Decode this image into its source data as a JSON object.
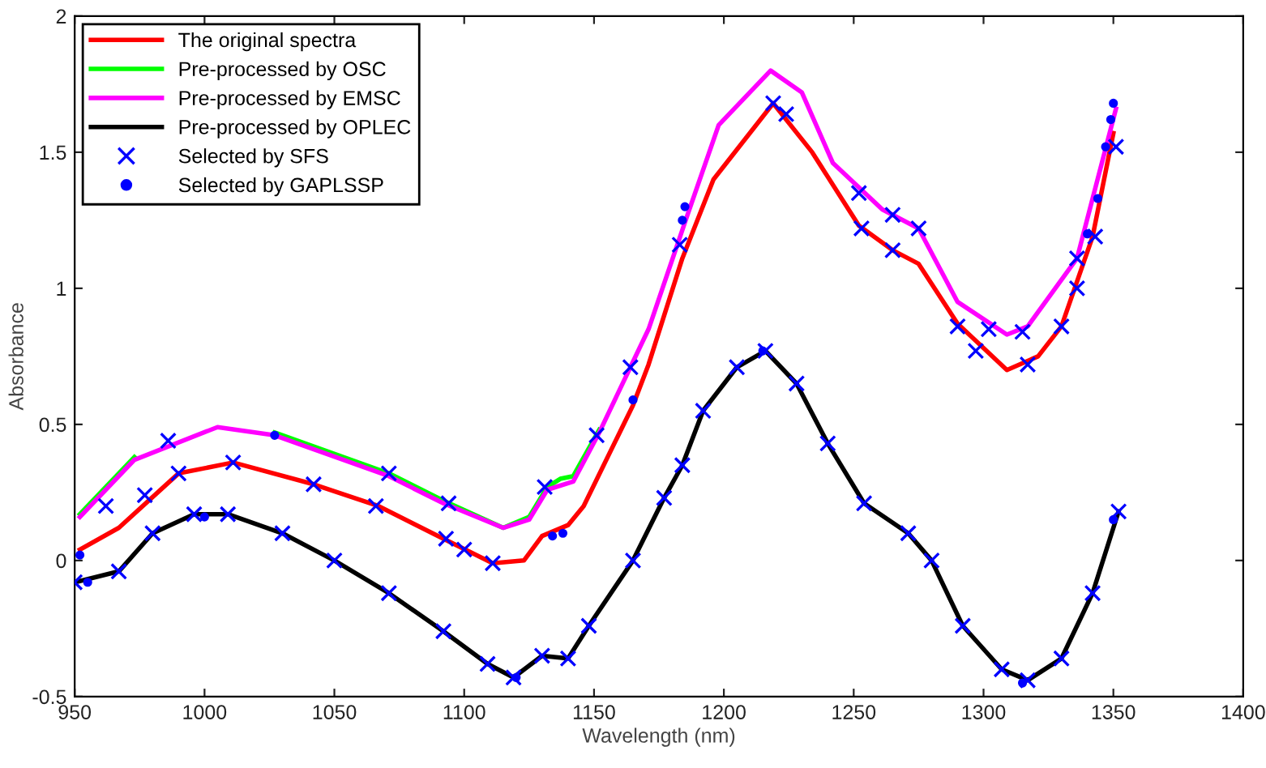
{
  "chart_data": {
    "type": "line",
    "xlabel": "Wavelength (nm)",
    "ylabel": "Absorbance",
    "xlim": [
      950,
      1400
    ],
    "xticks": [
      950,
      1000,
      1050,
      1100,
      1150,
      1200,
      1250,
      1300,
      1350,
      1400
    ],
    "ylim": [
      -0.5,
      2
    ],
    "yticks": [
      -0.5,
      0,
      0.5,
      1,
      1.5,
      2
    ],
    "grid": false,
    "legend": "top left",
    "series": [
      {
        "name": "The original spectra",
        "color": "#ff0000",
        "x": [
          952,
          967,
          990,
          1011,
          1042,
          1067,
          1092,
          1111,
          1123,
          1130,
          1140,
          1146,
          1165,
          1171,
          1184,
          1196,
          1219,
          1234,
          1252,
          1265,
          1275,
          1290,
          1309,
          1321,
          1330,
          1342,
          1350
        ],
        "values": [
          0.04,
          0.12,
          0.32,
          0.36,
          0.28,
          0.2,
          0.08,
          -0.01,
          0,
          0.09,
          0.13,
          0.2,
          0.57,
          0.72,
          1.11,
          1.4,
          1.68,
          1.5,
          1.23,
          1.14,
          1.09,
          0.87,
          0.7,
          0.75,
          0.86,
          1.19,
          1.57
        ]
      },
      {
        "name": "Pre-processed by OSC",
        "color": "#00ff00",
        "x": [
          952,
          973,
          1005,
          1027,
          1071,
          1092,
          1115,
          1125,
          1132,
          1137,
          1142,
          1152
        ],
        "values": [
          0.17,
          0.38,
          null,
          0.47,
          0.32,
          0.22,
          0.12,
          0.16,
          0.27,
          0.3,
          0.31,
          0.48
        ]
      },
      {
        "name": "Pre-processed by EMSC",
        "color": "#ff00ff",
        "x": [
          952,
          973,
          1005,
          1027,
          1071,
          1092,
          1115,
          1125,
          1132,
          1142,
          1152,
          1164,
          1171,
          1186,
          1198,
          1218,
          1230,
          1242,
          1261,
          1275,
          1290,
          1309,
          1317,
          1336,
          1351
        ],
        "values": [
          0.16,
          0.37,
          0.49,
          0.46,
          0.31,
          0.21,
          0.12,
          0.15,
          0.26,
          0.29,
          0.47,
          0.71,
          0.85,
          1.27,
          1.6,
          1.8,
          1.72,
          1.46,
          1.29,
          1.22,
          0.95,
          0.83,
          0.86,
          1.11,
          1.66
        ]
      },
      {
        "name": "Pre-processed by OPLEC",
        "color": "#000000",
        "x": [
          950,
          967,
          980,
          996,
          1009,
          1030,
          1050,
          1071,
          1092,
          1109,
          1119,
          1130,
          1140,
          1148,
          1165,
          1177,
          1184,
          1192,
          1205,
          1216,
          1228,
          1240,
          1254,
          1271,
          1280,
          1292,
          1307,
          1317,
          1330,
          1342,
          1352
        ],
        "values": [
          -0.08,
          -0.04,
          0.1,
          0.17,
          0.17,
          0.1,
          0,
          -0.12,
          -0.26,
          -0.38,
          -0.43,
          -0.35,
          -0.36,
          -0.24,
          0,
          0.23,
          0.35,
          0.55,
          0.71,
          0.77,
          0.65,
          0.43,
          0.21,
          0.1,
          0,
          -0.24,
          -0.4,
          -0.44,
          -0.36,
          -0.12,
          0.18
        ]
      },
      {
        "name": "Selected by SFS",
        "color": "#0000ff",
        "type": "scatter",
        "marker": "cross",
        "x": [
          962,
          986,
          1071,
          1094,
          1131,
          1151,
          1164,
          1183,
          1252,
          1265,
          1275,
          1302,
          1315,
          1336,
          1343,
          1351,
          977,
          990,
          1011,
          1042,
          1066,
          1093,
          1100,
          1111,
          1219,
          1224,
          1253,
          1265,
          1290,
          1297,
          1317,
          1330,
          1336,
          950,
          967,
          980,
          996,
          1009,
          1030,
          1050,
          1071,
          1092,
          1109,
          1119,
          1130,
          1140,
          1148,
          1165,
          1177,
          1184,
          1192,
          1205,
          1216,
          1228,
          1240,
          1254,
          1271,
          1280,
          1292,
          1307,
          1317,
          1330,
          1342,
          1352
        ],
        "values": [
          0.2,
          0.44,
          0.32,
          0.21,
          0.27,
          0.46,
          0.71,
          1.16,
          1.35,
          1.27,
          1.22,
          0.85,
          0.84,
          1.11,
          1.19,
          1.52,
          0.24,
          0.32,
          0.36,
          0.28,
          0.2,
          0.08,
          0.04,
          -0.01,
          1.68,
          1.64,
          1.22,
          1.14,
          0.86,
          0.77,
          0.72,
          0.86,
          1.0,
          -0.08,
          -0.04,
          0.1,
          0.17,
          0.17,
          0.1,
          0,
          -0.12,
          -0.26,
          -0.38,
          -0.43,
          -0.35,
          -0.36,
          -0.24,
          0,
          0.23,
          0.35,
          0.55,
          0.71,
          0.77,
          0.65,
          0.43,
          0.21,
          0.1,
          0,
          -0.24,
          -0.4,
          -0.44,
          -0.36,
          -0.12,
          0.18
        ]
      },
      {
        "name": "Selected by GAPLSSP",
        "color": "#0000ff",
        "type": "scatter",
        "marker": "circle",
        "x": [
          952,
          1027,
          1134,
          1138,
          1165,
          1184,
          1185,
          1340,
          1344,
          1347,
          1349,
          1350,
          955,
          1000,
          1120,
          1215,
          1315,
          1350
        ],
        "values": [
          0.02,
          0.46,
          0.09,
          0.1,
          0.59,
          1.25,
          1.3,
          1.2,
          1.33,
          1.52,
          1.62,
          1.68,
          -0.08,
          0.16,
          -0.43,
          0.77,
          -0.45,
          0.15
        ]
      }
    ]
  }
}
